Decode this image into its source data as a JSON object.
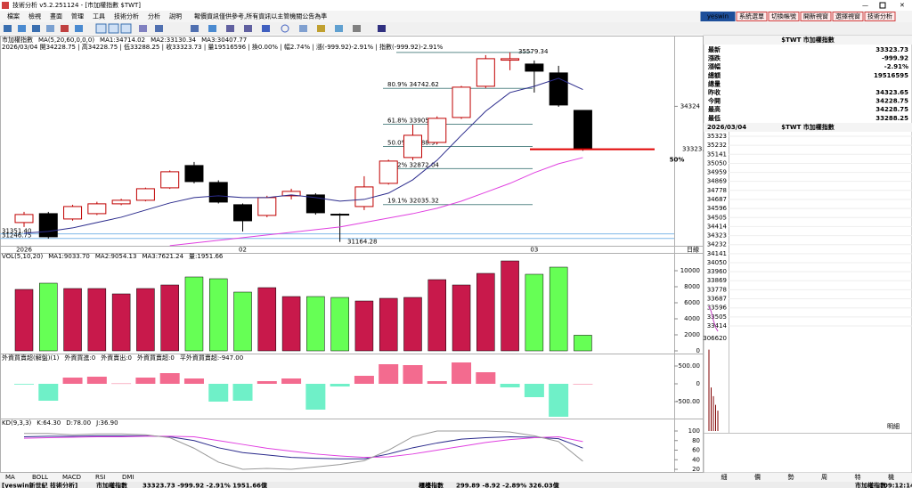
{
  "window": {
    "title": "技術分析 v5.2.251124 - [市加權指數 $TWT]"
  },
  "menu": [
    "檔案",
    "檢視",
    "畫面",
    "管理",
    "工具",
    "技術分析",
    "分析",
    "說明"
  ],
  "notice": "報價資訊僅供參考,所有資訊以主管機關公告為準",
  "top_buttons": [
    "yeswin",
    "系統選單",
    "切換帳號",
    "開新視窗",
    "選擇視窗",
    "技術分析"
  ],
  "chart_data": [
    {
      "type": "candlestick",
      "header": [
        {
          "text": "市加權指數",
          "color": "#000000"
        },
        {
          "text": "MA(5,20,60,0,0,0)",
          "color": "#555555"
        },
        {
          "text": "MA1:34714.02",
          "color": "#2b2b8c"
        },
        {
          "text": "MA2:33130.34",
          "color": "#e040e0"
        },
        {
          "text": "MA3:30407.77",
          "color": "#999999"
        }
      ],
      "subheader": "2026/03/04 開34228.75 | 高34228.75 | 低33288.25 | 收33323.73 | 量19516596 | 換0.00% | 幅2.74% | 漲(-999.92)-2.91% | 指數(-999.92)-2.91%",
      "categories": [
        "2026",
        null,
        null,
        null,
        null,
        null,
        null,
        null,
        null,
        "02",
        null,
        null,
        null,
        null,
        null,
        null,
        null,
        null,
        null,
        null,
        null,
        "03",
        null,
        null
      ],
      "open": [
        31616,
        31823,
        31699,
        31823,
        32052,
        32135,
        32425,
        32944,
        32550,
        32031,
        31782,
        32238,
        32259,
        31810,
        31989,
        32529,
        33131,
        33483,
        34064,
        34791,
        35400,
        35309,
        35102,
        34228.75
      ],
      "high": [
        31865,
        31865,
        32030,
        32100,
        32170,
        32430,
        32830,
        33027,
        32600,
        32060,
        32240,
        32404,
        32300,
        31830,
        32695,
        33080,
        33898,
        34090,
        34800,
        35517,
        35579.34,
        35392,
        35268,
        34228.75
      ],
      "low": [
        31512,
        31242,
        31660,
        31790,
        32020,
        32110,
        32400,
        32529,
        32060,
        31408,
        31740,
        32155,
        31800,
        31164.28,
        31906,
        32500,
        33068,
        33440,
        34030,
        34749,
        35165,
        34645,
        34313,
        33288.25
      ],
      "close": [
        31803,
        31284,
        31989,
        32052,
        32135,
        32404,
        32799,
        32570,
        32093,
        31657,
        32197,
        32342,
        31844,
        31803,
        32446,
        33048,
        33649,
        34044,
        34770,
        35434,
        35434,
        35143,
        34355,
        33323.73
      ],
      "up_color": "#c00000",
      "down_color": "#000000",
      "series": [
        {
          "color": "#2b2b8c",
          "values": [
            31367,
            31408,
            31491,
            31616,
            31740,
            31906,
            32072,
            32197,
            32238,
            32197,
            32197,
            32259,
            32197,
            32114,
            32155,
            32301,
            32612,
            33068,
            33649,
            34210,
            34645,
            34791,
            34977,
            34714.02
          ]
        },
        {
          "color": "#e040e0",
          "values": [
            null,
            null,
            null,
            null,
            null,
            null,
            31076,
            31139,
            31201,
            31263,
            31325,
            31388,
            31450,
            31512,
            31616,
            31720,
            31823,
            31948,
            32114,
            32321,
            32529,
            32778,
            32986,
            33130.34
          ]
        }
      ],
      "ylim": [
        30950,
        35930
      ],
      "yticks": [
        34324
      ],
      "hlines": [
        {
          "value": 31351.4,
          "label": "31351.40"
        },
        {
          "value": 31246.75,
          "label": "31246.75"
        }
      ],
      "fibonacci": [
        {
          "label": "80.9% 34742.62",
          "value": 34742.62
        },
        {
          "label": "61.8% 33905.90",
          "value": 33905.9
        },
        {
          "label": "50.0% 33388.97",
          "value": 33388.97
        },
        {
          "label": "38.2% 32872.04",
          "value": 32872.04
        },
        {
          "label": "19.1% 32035.32",
          "value": 32035.32
        }
      ],
      "high_label": 35579.34,
      "low_label": 31164.28,
      "last_price": 33323.73,
      "annotation": "50%",
      "period": "日線"
    },
    {
      "type": "bar",
      "header": [
        {
          "text": "VOL(5,10,20)",
          "color": "#000000"
        },
        {
          "text": "MA1:9033.70",
          "color": "#aaaaaa"
        },
        {
          "text": "MA2:9054.13",
          "color": "#f080c0"
        },
        {
          "text": "MA3:7621.24",
          "color": "#80c0e0"
        },
        {
          "text": "量:1951.66",
          "color": "#3030c0"
        }
      ],
      "values": [
        7667,
        8444,
        7778,
        7778,
        7111,
        7778,
        8222,
        9222,
        9000,
        7333,
        7889,
        6778,
        6778,
        6667,
        6222,
        6556,
        6667,
        8889,
        8222,
        9667,
        11222,
        9556,
        10444,
        1951.66
      ],
      "colors": [
        "#c8194b",
        "#66ff55",
        "#c8194b",
        "#c8194b",
        "#c8194b",
        "#c8194b",
        "#c8194b",
        "#66ff55",
        "#66ff55",
        "#66ff55",
        "#c8194b",
        "#c8194b",
        "#66ff55",
        "#66ff55",
        "#c8194b",
        "#c8194b",
        "#c8194b",
        "#c8194b",
        "#c8194b",
        "#c8194b",
        "#c8194b",
        "#66ff55",
        "#66ff55",
        "#66ff55"
      ],
      "ylim": [
        0,
        11778
      ],
      "yticks": [
        0,
        2000,
        4000,
        6000,
        8000,
        10000
      ]
    },
    {
      "type": "signed-bar",
      "header": [
        {
          "text": "外資買賣超(解盤)(1)",
          "color": "#000000"
        },
        {
          "text": "外資買進:0",
          "color": "#e04080"
        },
        {
          "text": "外資賣出:0",
          "color": "#40a0a0"
        },
        {
          "text": "外資買賣超:0",
          "color": "#808080"
        },
        {
          "text": "平外資買賣超:-947.00",
          "color": "#4080e0"
        }
      ],
      "values": [
        -20,
        -475,
        175,
        200,
        10,
        175,
        300,
        150,
        -500,
        -475,
        75,
        150,
        -725,
        -75,
        225,
        550,
        525,
        75,
        600,
        325,
        -100,
        -375,
        -925,
        0
      ],
      "pos_color": "#f36b8f",
      "neg_color": "#6ff0c8",
      "ylim": [
        -975,
        775
      ],
      "yticks": [
        {
          "value": 500,
          "label": "500.00"
        },
        0,
        {
          "value": -500,
          "label": "-500.00"
        }
      ]
    },
    {
      "type": "line",
      "header": [
        {
          "text": "KD(9,3,3)",
          "color": "#000000"
        },
        {
          "text": "K:64.30",
          "color": "#2b2b8c"
        },
        {
          "text": "D:78.00",
          "color": "#e040e0"
        },
        {
          "text": "J:36.90",
          "color": "#999999"
        }
      ],
      "series": [
        {
          "color": "#2b2b8c",
          "values": [
            88,
            89,
            89,
            90,
            90,
            90,
            88,
            80,
            65,
            55,
            50,
            45,
            43,
            42,
            42,
            52,
            65,
            75,
            83,
            86,
            88,
            87,
            84,
            64.3
          ]
        },
        {
          "color": "#e040e0",
          "values": [
            85,
            86,
            87,
            88,
            88,
            89,
            89,
            88,
            80,
            72,
            64,
            58,
            52,
            48,
            45,
            46,
            52,
            60,
            68,
            76,
            82,
            86,
            88,
            78
          ]
        },
        {
          "color": "#999999",
          "values": [
            95,
            95,
            92,
            94,
            94,
            92,
            86,
            64,
            35,
            20,
            22,
            20,
            25,
            30,
            38,
            60,
            88,
            100,
            100,
            100,
            98,
            90,
            78,
            36.9
          ]
        }
      ],
      "ylim": [
        10,
        100
      ],
      "yticks": [
        20,
        40,
        60,
        80,
        100
      ]
    }
  ],
  "indicator_tabs": [
    "MA",
    "BOLL",
    "MACD",
    "RSI",
    "DMI"
  ],
  "quote_panel": {
    "title": "$TWT 市加權指數",
    "rows": [
      {
        "label": "最新",
        "value": "33323.73",
        "color": "#008000"
      },
      {
        "label": "漲跌",
        "value": "-999.92",
        "color": "#008000"
      },
      {
        "label": "漲幅",
        "value": "-2.91%",
        "color": "#008000"
      },
      {
        "label": "總額",
        "value": "19516595",
        "color": "#000000"
      },
      {
        "label": "總量",
        "value": null,
        "color": "#000000"
      },
      {
        "label": "昨收",
        "value": "34323.65",
        "color": "#000000"
      },
      {
        "label": "今開",
        "value": "34228.75",
        "color": "#008000"
      },
      {
        "label": "最高",
        "value": "34228.75",
        "color": "#008000"
      },
      {
        "label": "最低",
        "value": "33288.25",
        "color": "#008000"
      }
    ],
    "date": "2026/03/04",
    "subtitle": "$TWT 市加權指數"
  },
  "intraday": {
    "prev_close": 34323,
    "yticks": [
      35323,
      35232,
      35141,
      35050,
      34959,
      34869,
      34778,
      34687,
      34596,
      34505,
      34414,
      34323,
      34232,
      34141,
      34050,
      33960,
      33869,
      33778,
      33687,
      33596,
      33505,
      33414
    ],
    "ylim": [
      33414,
      35323
    ],
    "values": [
      33610,
      33560,
      33470,
      33400,
      33360
    ],
    "volumes": [
      280000,
      150000,
      120000,
      90000,
      70000
    ],
    "volume_ticks": [
      306620
    ],
    "volume_lim": [
      0,
      306620
    ],
    "detail_label": "明細"
  },
  "panel_tabs": [
    "細",
    "價",
    "勢",
    "周",
    "特",
    "機"
  ],
  "status_bar": {
    "brand": "[yeswin新世紀 技術分析]",
    "index1": "市加權指數",
    "quote1": "33323.73 -999.92 -2.91% 1951.66億",
    "index2": "櫃檯指數",
    "quote2": "299.89 -8.92 -2.89% 326.03億",
    "index3": "市加權指數",
    "time": "09:12:14"
  }
}
